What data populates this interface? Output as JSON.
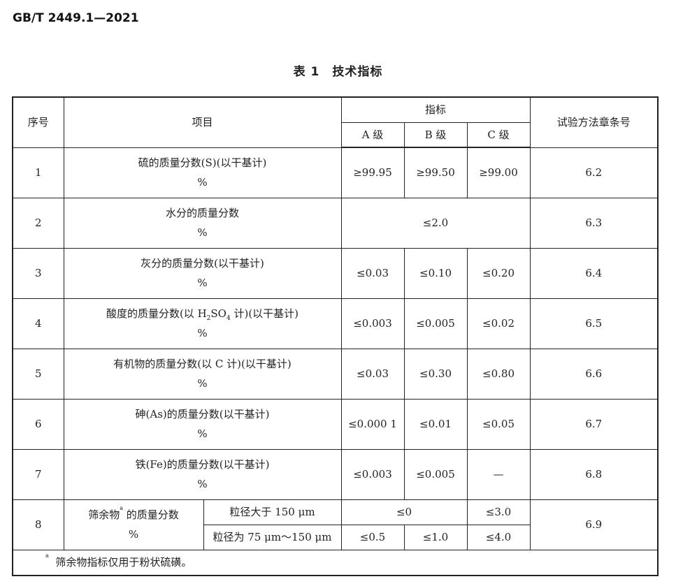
{
  "header": "GB/T 2449.1—2021",
  "table_title": "表 1　技术指标",
  "columns": {
    "no": "序号",
    "item": "项目",
    "index": "指标",
    "a": "A 级",
    "b": "B 级",
    "c": "C 级",
    "method": "试验方法章条号"
  },
  "rows": [
    {
      "no": "1",
      "item": "硫的质量分数(S)(以干基计)",
      "unit": "%",
      "a": "≥99.95",
      "b": "≥99.50",
      "c": "≥99.00",
      "method": "6.2"
    },
    {
      "no": "2",
      "item": "水分的质量分数",
      "unit": "%",
      "merged": "≤2.0",
      "method": "6.3"
    },
    {
      "no": "3",
      "item": "灰分的质量分数(以干基计)",
      "unit": "%",
      "a": "≤0.03",
      "b": "≤0.10",
      "c": "≤0.20",
      "method": "6.4"
    },
    {
      "no": "4",
      "item_pre": "酸度的质量分数(以 H",
      "item_sub1": "2",
      "item_mid": "SO",
      "item_sub2": "4",
      "item_post": " 计)(以干基计)",
      "unit": "%",
      "a": "≤0.003",
      "b": "≤0.005",
      "c": "≤0.02",
      "method": "6.5"
    },
    {
      "no": "5",
      "item": "有机物的质量分数(以 C 计)(以干基计)",
      "unit": "%",
      "a": "≤0.03",
      "b": "≤0.30",
      "c": "≤0.80",
      "method": "6.6"
    },
    {
      "no": "6",
      "item": "砷(As)的质量分数(以干基计)",
      "unit": "%",
      "a": "≤0.000 1",
      "b": "≤0.01",
      "c": "≤0.05",
      "method": "6.7"
    },
    {
      "no": "7",
      "item": "铁(Fe)的质量分数(以干基计)",
      "unit": "%",
      "a": "≤0.003",
      "b": "≤0.005",
      "c": "—",
      "method": "6.8"
    }
  ],
  "row8": {
    "no": "8",
    "item": "筛余物",
    "sup": "a",
    "item_post": " 的质量分数",
    "unit": "%",
    "method": "6.9",
    "sub1": {
      "label": "粒径大于 150 μm",
      "ab": "≤0",
      "c": "≤3.0"
    },
    "sub2": {
      "label": "粒径为 75 μm～150 μm",
      "a": "≤0.5",
      "b": "≤1.0",
      "c": "≤4.0"
    }
  },
  "footnote": {
    "mark": "a",
    "text": "筛余物指标仅用于粉状硫磺。"
  }
}
